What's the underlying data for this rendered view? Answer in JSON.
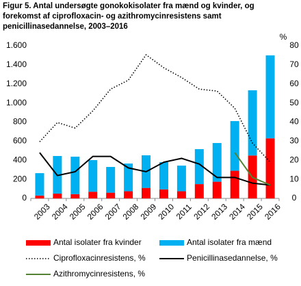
{
  "chart_data": {
    "type": "bar",
    "title": [
      "Figur 5. Antal undersøgte gonokokisolater fra mænd og kvinder, og",
      "forekomst af ciprofloxacin- og azithromycinresistens samt",
      "penicillinasedannelse, 2003–2016"
    ],
    "categories": [
      "2003",
      "2004",
      "2005",
      "2006",
      "2007",
      "2008",
      "2009",
      "2010",
      "2011",
      "2012",
      "2013",
      "2014",
      "2015",
      "2016"
    ],
    "series": [
      {
        "name": "Antal isolater fra kvinder",
        "kind": "bar",
        "color": "#ff0000",
        "values": [
          30,
          50,
          45,
          70,
          60,
          75,
          110,
          95,
          75,
          150,
          175,
          290,
          450,
          630
        ]
      },
      {
        "name": "Antal isolater fra mænd",
        "kind": "bar",
        "color": "#00b0f0",
        "values": [
          235,
          395,
          393,
          332,
          270,
          291,
          342,
          285,
          269,
          367,
          406,
          521,
          684,
          870
        ]
      },
      {
        "name": "Ciprofloxacinresistens, %",
        "kind": "line",
        "style": "dotted",
        "axis": "y2",
        "color": "#000000",
        "values": [
          29.7,
          39.8,
          36.9,
          45.9,
          57.3,
          62,
          75.3,
          68.5,
          63.4,
          57.3,
          56.3,
          47.3,
          29,
          19
        ]
      },
      {
        "name": "Penicillinasedannelse, %",
        "kind": "line",
        "style": "solid",
        "axis": "y2",
        "color": "#000000",
        "values": [
          24,
          12,
          14,
          22,
          22,
          16,
          14,
          19,
          21,
          18,
          11,
          11,
          8,
          7
        ]
      },
      {
        "name": "Azithromycinresistens, %",
        "kind": "line",
        "style": "solid",
        "axis": "y2",
        "color": "#548235",
        "values": [
          null,
          null,
          null,
          null,
          null,
          null,
          null,
          null,
          null,
          null,
          null,
          24,
          11,
          7
        ]
      }
    ],
    "ylim": [
      0,
      1600
    ],
    "yticks": [
      0,
      200,
      400,
      600,
      800,
      {
        "value": 1000,
        "label": "1.000"
      },
      {
        "value": 1200,
        "label": "1.200"
      },
      {
        "value": 1400,
        "label": "1.400"
      },
      {
        "value": 1600,
        "label": "1.600"
      }
    ],
    "y2label": "%",
    "y2lim": [
      0,
      80
    ],
    "y2ticks": [
      0,
      10,
      20,
      30,
      40,
      50,
      60,
      70,
      80
    ],
    "grid": false
  }
}
